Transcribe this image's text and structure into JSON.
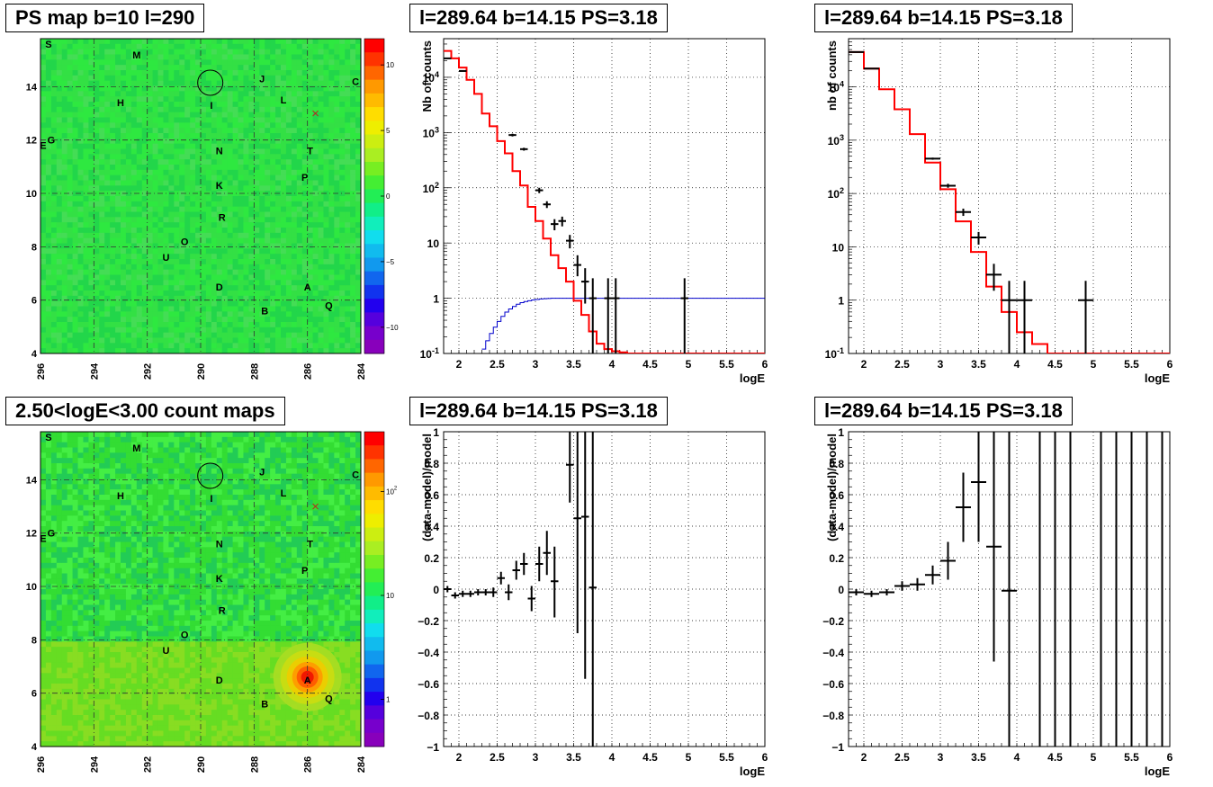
{
  "colors": {
    "data_marker": "#000000",
    "model_line": "#ff0000",
    "ps_line": "#0000cc",
    "map_background": "#22dd44"
  },
  "panels": [
    {
      "id": "ps_map",
      "title": "PS map b=10 l=290",
      "type": "heatmap",
      "x_axis": {
        "range": [
          296,
          284
        ],
        "ticks": [
          "296",
          "294",
          "292",
          "290",
          "288",
          "286",
          "284"
        ]
      },
      "y_axis": {
        "range": [
          4,
          15.8
        ],
        "ticks": [
          "4",
          "6",
          "8",
          "10",
          "12",
          "14"
        ]
      },
      "colorbar": {
        "scale": "linear",
        "range": [
          -12,
          12
        ],
        "ticks": [
          "10",
          "5",
          "0",
          "-5",
          "-10"
        ]
      },
      "sources": [
        {
          "name": "S",
          "l": 295.7,
          "b": 15.6
        },
        {
          "name": "M",
          "l": 292.4,
          "b": 15.2
        },
        {
          "name": "J",
          "l": 287.7,
          "b": 14.3
        },
        {
          "name": "C",
          "l": 284.2,
          "b": 14.2
        },
        {
          "name": "H",
          "l": 293.0,
          "b": 13.4
        },
        {
          "name": "I",
          "l": 289.6,
          "b": 13.3
        },
        {
          "name": "L",
          "l": 286.9,
          "b": 13.5
        },
        {
          "name": "E",
          "l": 295.9,
          "b": 11.8
        },
        {
          "name": "G",
          "l": 295.6,
          "b": 12.0
        },
        {
          "name": "N",
          "l": 289.3,
          "b": 11.6
        },
        {
          "name": "T",
          "l": 285.9,
          "b": 11.6
        },
        {
          "name": "K",
          "l": 289.3,
          "b": 10.3
        },
        {
          "name": "P",
          "l": 286.1,
          "b": 10.6
        },
        {
          "name": "R",
          "l": 289.2,
          "b": 9.1
        },
        {
          "name": "O",
          "l": 290.6,
          "b": 8.2
        },
        {
          "name": "U",
          "l": 291.3,
          "b": 7.6
        },
        {
          "name": "D",
          "l": 289.3,
          "b": 6.5
        },
        {
          "name": "A",
          "l": 286.0,
          "b": 6.5
        },
        {
          "name": "Q",
          "l": 285.2,
          "b": 5.8
        },
        {
          "name": "B",
          "l": 287.6,
          "b": 5.6
        }
      ],
      "circle": {
        "l": 289.64,
        "b": 14.15
      },
      "cross": {
        "l": 285.7,
        "b": 13.0
      }
    },
    {
      "id": "spec_a",
      "title": "l=289.64 b=14.15 PS=3.18",
      "type": "step_hist",
      "xlabel": "logE",
      "ylabel": "Nb of counts",
      "xlim": [
        1.8,
        6
      ],
      "ylog": true,
      "ylim": [
        0.1,
        50000
      ],
      "x_ticks": [
        "2",
        "2.5",
        "3",
        "3.5",
        "4",
        "4.5",
        "5",
        "5.5",
        "6"
      ],
      "y_ticks": [
        "10^-1",
        "1",
        "10",
        "10^2",
        "10^3",
        "10^4"
      ],
      "model_edges": [
        1.8,
        1.9,
        2.0,
        2.1,
        2.2,
        2.3,
        2.4,
        2.5,
        2.6,
        2.7,
        2.8,
        2.9,
        3.0,
        3.1,
        3.2,
        3.3,
        3.4,
        3.5,
        3.6,
        3.7,
        3.8,
        3.9,
        4.0,
        4.1,
        4.2,
        4.3,
        6.0
      ],
      "model_values": [
        30000,
        22000,
        15000,
        9000,
        5000,
        2200,
        1300,
        700,
        420,
        200,
        110,
        45,
        25,
        12,
        6,
        3.5,
        2,
        0.9,
        0.5,
        0.25,
        0.15,
        0.12,
        0.11,
        0.105,
        0.1,
        0.1
      ],
      "ps_edges": [
        2.3,
        2.35,
        2.4,
        2.45,
        2.5,
        2.55,
        2.6,
        2.65,
        2.7,
        2.75,
        2.8,
        2.85,
        2.9,
        2.95,
        3.0,
        3.05,
        3.1,
        3.15,
        3.2,
        3.3,
        3.4,
        3.5,
        3.6,
        6.0
      ],
      "ps_values": [
        0.12,
        0.17,
        0.23,
        0.3,
        0.38,
        0.47,
        0.56,
        0.64,
        0.71,
        0.78,
        0.83,
        0.87,
        0.9,
        0.93,
        0.95,
        0.97,
        0.98,
        0.99,
        1.0,
        1.0,
        1.0,
        1.0,
        1.0,
        1.0
      ],
      "points": [
        {
          "x": 1.85,
          "y": 22000,
          "dx": 0.05,
          "lo": 21500,
          "hi": 22500
        },
        {
          "x": 2.05,
          "y": 13000,
          "dx": 0.05,
          "lo": 12700,
          "hi": 13300
        },
        {
          "x": 2.7,
          "y": 900,
          "dx": 0.05,
          "lo": 850,
          "hi": 950
        },
        {
          "x": 2.85,
          "y": 500,
          "dx": 0.05,
          "lo": 470,
          "hi": 530
        },
        {
          "x": 3.05,
          "y": 90,
          "dx": 0.05,
          "lo": 80,
          "hi": 100
        },
        {
          "x": 3.15,
          "y": 50,
          "dx": 0.05,
          "lo": 43,
          "hi": 57
        },
        {
          "x": 3.25,
          "y": 22,
          "dx": 0.05,
          "lo": 17,
          "hi": 27
        },
        {
          "x": 3.35,
          "y": 25,
          "dx": 0.05,
          "lo": 20,
          "hi": 30
        },
        {
          "x": 3.45,
          "y": 11,
          "dx": 0.05,
          "lo": 8,
          "hi": 14
        },
        {
          "x": 3.55,
          "y": 4,
          "dx": 0.05,
          "lo": 2.5,
          "hi": 6
        },
        {
          "x": 3.65,
          "y": 2,
          "dx": 0.05,
          "lo": 0.8,
          "hi": 3.5
        },
        {
          "x": 3.75,
          "y": 1,
          "dx": 0.05,
          "lo": 0.1,
          "hi": 2.3
        },
        {
          "x": 3.95,
          "y": 1,
          "dx": 0.05,
          "lo": 0.1,
          "hi": 2.3
        },
        {
          "x": 4.05,
          "y": 1,
          "dx": 0.05,
          "lo": 0.1,
          "hi": 2.3
        },
        {
          "x": 4.95,
          "y": 1,
          "dx": 0.05,
          "lo": 0.1,
          "hi": 2.3
        }
      ]
    },
    {
      "id": "spec_b",
      "title": "l=289.64 b=14.15 PS=3.18",
      "type": "step_hist",
      "xlabel": "logE",
      "ylabel": "nb of counts",
      "xlim": [
        1.8,
        6
      ],
      "ylog": true,
      "ylim": [
        0.1,
        80000
      ],
      "x_ticks": [
        "2",
        "2.5",
        "3",
        "3.5",
        "4",
        "4.5",
        "5",
        "5.5",
        "6"
      ],
      "y_ticks": [
        "10^-1",
        "1",
        "10",
        "10^2",
        "10^3",
        "10^4"
      ],
      "model_edges": [
        1.8,
        2.0,
        2.2,
        2.4,
        2.6,
        2.8,
        3.0,
        3.2,
        3.4,
        3.6,
        3.8,
        4.0,
        4.2,
        4.4,
        6.0
      ],
      "model_values": [
        45000,
        22000,
        9000,
        3800,
        1300,
        380,
        120,
        30,
        8,
        1.8,
        0.6,
        0.25,
        0.15,
        0.1
      ],
      "points": [
        {
          "x": 1.9,
          "y": 45000,
          "dx": 0.1,
          "lo": 44500,
          "hi": 45500
        },
        {
          "x": 2.1,
          "y": 22000,
          "dx": 0.1,
          "lo": 21700,
          "hi": 22300
        },
        {
          "x": 2.9,
          "y": 450,
          "dx": 0.1,
          "lo": 430,
          "hi": 470
        },
        {
          "x": 3.1,
          "y": 140,
          "dx": 0.1,
          "lo": 128,
          "hi": 152
        },
        {
          "x": 3.3,
          "y": 45,
          "dx": 0.1,
          "lo": 38,
          "hi": 52
        },
        {
          "x": 3.5,
          "y": 15,
          "dx": 0.1,
          "lo": 11,
          "hi": 19
        },
        {
          "x": 3.7,
          "y": 3,
          "dx": 0.1,
          "lo": 1.5,
          "hi": 4.8
        },
        {
          "x": 3.9,
          "y": 1,
          "dx": 0.1,
          "lo": 0.1,
          "hi": 2.3
        },
        {
          "x": 4.1,
          "y": 1,
          "dx": 0.1,
          "lo": 0.1,
          "hi": 2.3
        },
        {
          "x": 4.9,
          "y": 1,
          "dx": 0.1,
          "lo": 0.1,
          "hi": 2.3
        }
      ]
    },
    {
      "id": "count_map",
      "title": "2.50<logE<3.00 count maps",
      "type": "heatmap",
      "x_axis": {
        "range": [
          296,
          284
        ],
        "ticks": [
          "296",
          "294",
          "292",
          "290",
          "288",
          "286",
          "284"
        ]
      },
      "y_axis": {
        "range": [
          4,
          15.8
        ],
        "ticks": [
          "4",
          "6",
          "8",
          "10",
          "12",
          "14"
        ]
      },
      "colorbar": {
        "scale": "log",
        "ticks": [
          "10^2",
          "10",
          "1"
        ]
      },
      "hotspot": {
        "l": 286.0,
        "b": 6.6
      },
      "sources": [
        {
          "name": "S",
          "l": 295.7,
          "b": 15.6
        },
        {
          "name": "M",
          "l": 292.4,
          "b": 15.2
        },
        {
          "name": "J",
          "l": 287.7,
          "b": 14.3
        },
        {
          "name": "C",
          "l": 284.2,
          "b": 14.2
        },
        {
          "name": "H",
          "l": 293.0,
          "b": 13.4
        },
        {
          "name": "I",
          "l": 289.6,
          "b": 13.3
        },
        {
          "name": "L",
          "l": 286.9,
          "b": 13.5
        },
        {
          "name": "E",
          "l": 295.9,
          "b": 11.8
        },
        {
          "name": "G",
          "l": 295.6,
          "b": 12.0
        },
        {
          "name": "N",
          "l": 289.3,
          "b": 11.6
        },
        {
          "name": "T",
          "l": 285.9,
          "b": 11.6
        },
        {
          "name": "K",
          "l": 289.3,
          "b": 10.3
        },
        {
          "name": "P",
          "l": 286.1,
          "b": 10.6
        },
        {
          "name": "R",
          "l": 289.2,
          "b": 9.1
        },
        {
          "name": "O",
          "l": 290.6,
          "b": 8.2
        },
        {
          "name": "U",
          "l": 291.3,
          "b": 7.6
        },
        {
          "name": "D",
          "l": 289.3,
          "b": 6.5
        },
        {
          "name": "A",
          "l": 286.0,
          "b": 6.5
        },
        {
          "name": "Q",
          "l": 285.2,
          "b": 5.8
        },
        {
          "name": "B",
          "l": 287.6,
          "b": 5.6
        }
      ],
      "circle": {
        "l": 289.64,
        "b": 14.15
      },
      "cross": {
        "l": 285.7,
        "b": 13.0
      }
    },
    {
      "id": "resid_a",
      "title": "l=289.64 b=14.15 PS=3.18",
      "type": "residuals",
      "xlabel": "logE",
      "ylabel": "(data-model)/model",
      "xlim": [
        1.8,
        6
      ],
      "ylim": [
        -1,
        1
      ],
      "x_ticks": [
        "2",
        "2.5",
        "3",
        "3.5",
        "4",
        "4.5",
        "5",
        "5.5",
        "6"
      ],
      "y_ticks": [
        "-1",
        "-0.8",
        "-0.6",
        "-0.4",
        "-0.2",
        "0",
        "0.2",
        "0.4",
        "0.6",
        "0.8",
        "1"
      ],
      "points": [
        {
          "x": 1.85,
          "y": 0.0,
          "dx": 0.05,
          "lo": -0.02,
          "hi": 0.02
        },
        {
          "x": 1.95,
          "y": -0.04,
          "dx": 0.05,
          "lo": -0.06,
          "hi": -0.02
        },
        {
          "x": 2.05,
          "y": -0.03,
          "dx": 0.05,
          "lo": -0.05,
          "hi": -0.01
        },
        {
          "x": 2.15,
          "y": -0.03,
          "dx": 0.05,
          "lo": -0.05,
          "hi": -0.01
        },
        {
          "x": 2.25,
          "y": -0.02,
          "dx": 0.05,
          "lo": -0.04,
          "hi": 0.0
        },
        {
          "x": 2.35,
          "y": -0.02,
          "dx": 0.05,
          "lo": -0.04,
          "hi": 0.0
        },
        {
          "x": 2.45,
          "y": -0.02,
          "dx": 0.05,
          "lo": -0.05,
          "hi": 0.01
        },
        {
          "x": 2.55,
          "y": 0.07,
          "dx": 0.05,
          "lo": 0.03,
          "hi": 0.11
        },
        {
          "x": 2.65,
          "y": -0.02,
          "dx": 0.05,
          "lo": -0.07,
          "hi": 0.03
        },
        {
          "x": 2.75,
          "y": 0.12,
          "dx": 0.05,
          "lo": 0.06,
          "hi": 0.18
        },
        {
          "x": 2.85,
          "y": 0.16,
          "dx": 0.05,
          "lo": 0.09,
          "hi": 0.23
        },
        {
          "x": 2.95,
          "y": -0.06,
          "dx": 0.05,
          "lo": -0.14,
          "hi": 0.02
        },
        {
          "x": 3.05,
          "y": 0.16,
          "dx": 0.05,
          "lo": 0.05,
          "hi": 0.27
        },
        {
          "x": 3.15,
          "y": 0.23,
          "dx": 0.05,
          "lo": 0.09,
          "hi": 0.37
        },
        {
          "x": 3.25,
          "y": 0.05,
          "dx": 0.05,
          "lo": -0.18,
          "hi": 0.27
        },
        {
          "x": 3.45,
          "y": 0.79,
          "dx": 0.05,
          "lo": 0.55,
          "hi": 1.0
        },
        {
          "x": 3.55,
          "y": 0.45,
          "dx": 0.05,
          "lo": -0.28,
          "hi": 1.0
        },
        {
          "x": 3.65,
          "y": 0.46,
          "dx": 0.05,
          "lo": -0.57,
          "hi": 1.0
        },
        {
          "x": 3.75,
          "y": 0.01,
          "dx": 0.05,
          "lo": -1.0,
          "hi": 1.0
        }
      ]
    },
    {
      "id": "resid_b",
      "title": "l=289.64 b=14.15 PS=3.18",
      "type": "residuals",
      "xlabel": "logE",
      "ylabel": "(data-model)/model",
      "xlim": [
        1.8,
        6
      ],
      "ylim": [
        -1,
        1
      ],
      "x_ticks": [
        "2",
        "2.5",
        "3",
        "3.5",
        "4",
        "4.5",
        "5",
        "5.5",
        "6"
      ],
      "y_ticks": [
        "-1",
        "-0.8",
        "-0.6",
        "-0.4",
        "-0.2",
        "0",
        "0.2",
        "0.4",
        "0.6",
        "0.8",
        "1"
      ],
      "points": [
        {
          "x": 1.9,
          "y": -0.02,
          "dx": 0.1,
          "lo": -0.04,
          "hi": 0.0
        },
        {
          "x": 2.1,
          "y": -0.03,
          "dx": 0.1,
          "lo": -0.05,
          "hi": -0.01
        },
        {
          "x": 2.3,
          "y": -0.02,
          "dx": 0.1,
          "lo": -0.04,
          "hi": 0.0
        },
        {
          "x": 2.5,
          "y": 0.02,
          "dx": 0.1,
          "lo": -0.01,
          "hi": 0.05
        },
        {
          "x": 2.7,
          "y": 0.03,
          "dx": 0.1,
          "lo": -0.01,
          "hi": 0.07
        },
        {
          "x": 2.9,
          "y": 0.09,
          "dx": 0.1,
          "lo": 0.03,
          "hi": 0.15
        },
        {
          "x": 3.1,
          "y": 0.18,
          "dx": 0.1,
          "lo": 0.06,
          "hi": 0.3
        },
        {
          "x": 3.3,
          "y": 0.52,
          "dx": 0.1,
          "lo": 0.3,
          "hi": 0.74
        },
        {
          "x": 3.5,
          "y": 0.68,
          "dx": 0.1,
          "lo": 0.3,
          "hi": 1.0
        },
        {
          "x": 3.7,
          "y": 0.27,
          "dx": 0.1,
          "lo": -0.46,
          "hi": 1.0
        },
        {
          "x": 3.9,
          "y": -0.01,
          "dx": 0.1,
          "lo": -1.0,
          "hi": 1.0
        },
        {
          "x": 4.3,
          "y": 1.0,
          "dx": 0.0,
          "lo": -1.0,
          "hi": 1.0
        },
        {
          "x": 4.5,
          "y": 1.0,
          "dx": 0.0,
          "lo": -1.0,
          "hi": 1.0
        },
        {
          "x": 4.7,
          "y": 1.0,
          "dx": 0.0,
          "lo": -1.0,
          "hi": 1.0
        },
        {
          "x": 5.1,
          "y": 1.0,
          "dx": 0.0,
          "lo": -1.0,
          "hi": 1.0
        },
        {
          "x": 5.3,
          "y": 1.0,
          "dx": 0.0,
          "lo": -1.0,
          "hi": 1.0
        },
        {
          "x": 5.5,
          "y": 1.0,
          "dx": 0.0,
          "lo": -1.0,
          "hi": 1.0
        },
        {
          "x": 5.7,
          "y": 1.0,
          "dx": 0.0,
          "lo": -1.0,
          "hi": 1.0
        },
        {
          "x": 5.9,
          "y": 1.0,
          "dx": 0.0,
          "lo": -1.0,
          "hi": 1.0
        }
      ]
    }
  ]
}
